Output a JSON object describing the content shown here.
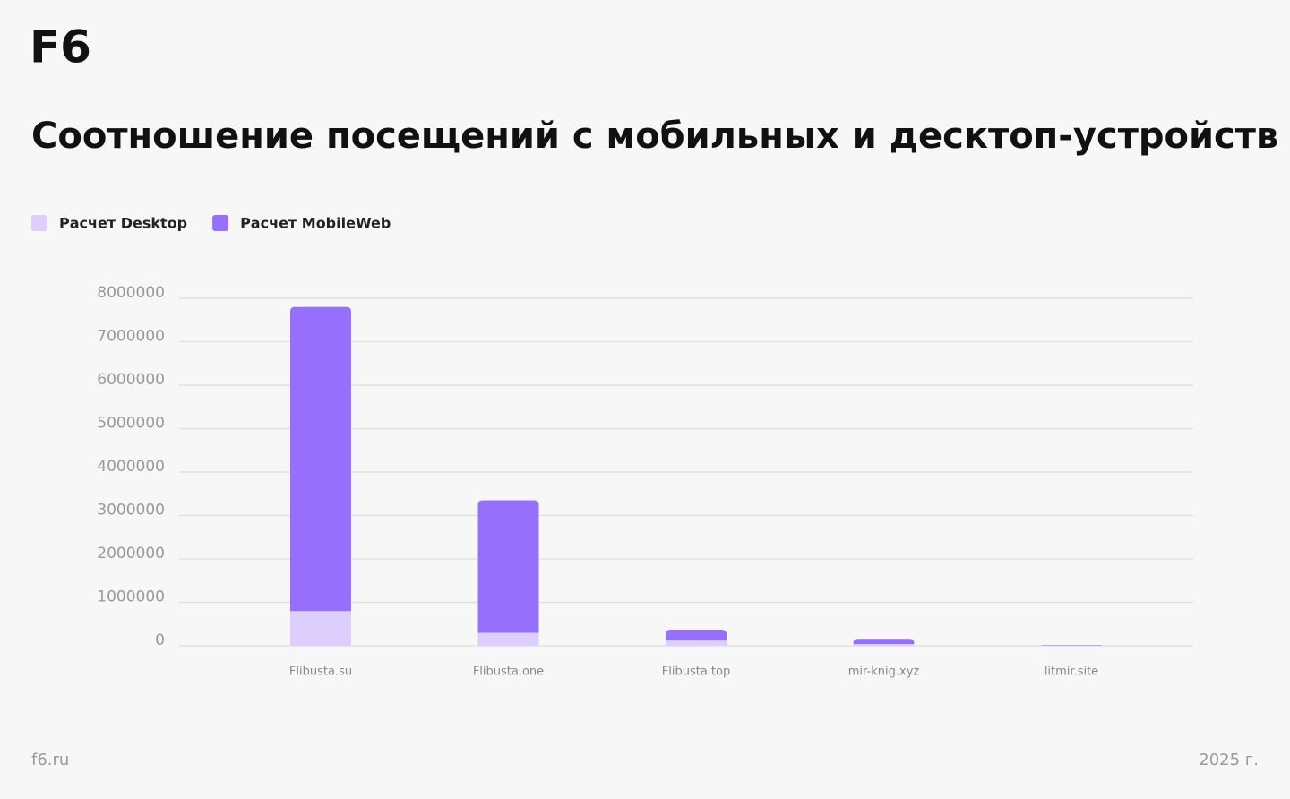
{
  "brand": "F6",
  "footer": {
    "site": "f6.ru",
    "year": "2025 г."
  },
  "chart_data": {
    "type": "stacked-bar",
    "title": "Соотношение посещений с мобильных и десктоп-устройств",
    "categories": [
      "Flibusta.su",
      "Flibusta.one",
      "Flibusta.top",
      "mir-knig.xyz",
      "litmir.site"
    ],
    "series": [
      {
        "name": "Расчет Desktop",
        "color": "#dccffd",
        "values": [
          800000,
          300000,
          120000,
          40000,
          5000
        ]
      },
      {
        "name": "Расчет MobileWeb",
        "color": "#966ffc",
        "values": [
          7000000,
          3050000,
          250000,
          120000,
          10000
        ]
      }
    ],
    "ylim": [
      0,
      8000000
    ],
    "yticks": [
      0,
      1000000,
      2000000,
      3000000,
      4000000,
      5000000,
      6000000,
      7000000,
      8000000
    ],
    "grid": true,
    "legend": "top-left"
  }
}
